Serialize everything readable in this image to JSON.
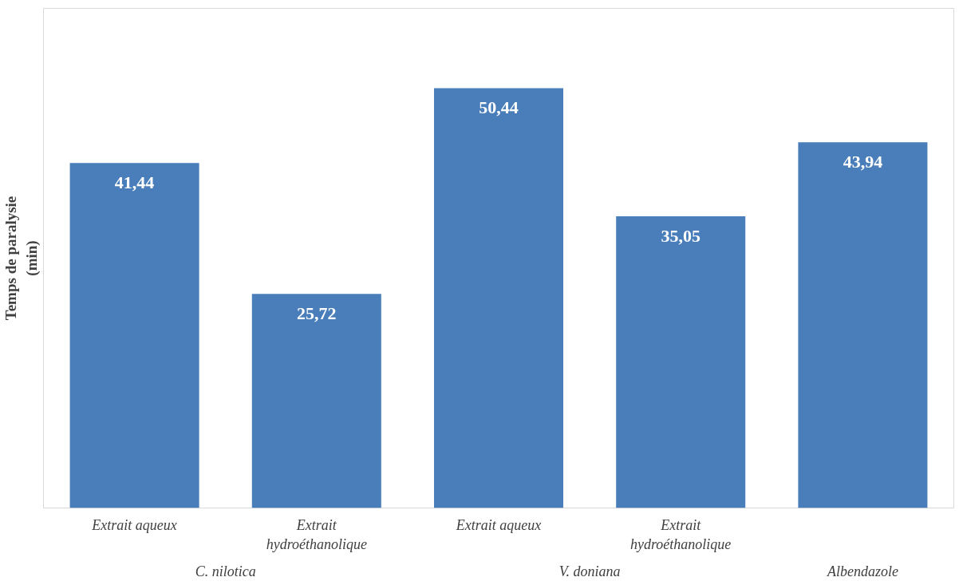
{
  "chart_data": {
    "type": "bar",
    "ylabel": "Temps de paralysie (min)",
    "categories": [
      "Extrait aqueux",
      "Extrait hydroéthanolique",
      "Extrait aqueux",
      "Extrait hydroéthanolique",
      null
    ],
    "values": [
      41.44,
      25.72,
      50.44,
      35.05,
      43.94
    ],
    "color": "#4a7ebb",
    "value_labels": [
      "41,44",
      "25,72",
      "50,44",
      "35,05",
      "43,94"
    ],
    "annotations": [
      "C. nilotica",
      "V. doniana",
      "Albendazole"
    ],
    "grid": false
  }
}
